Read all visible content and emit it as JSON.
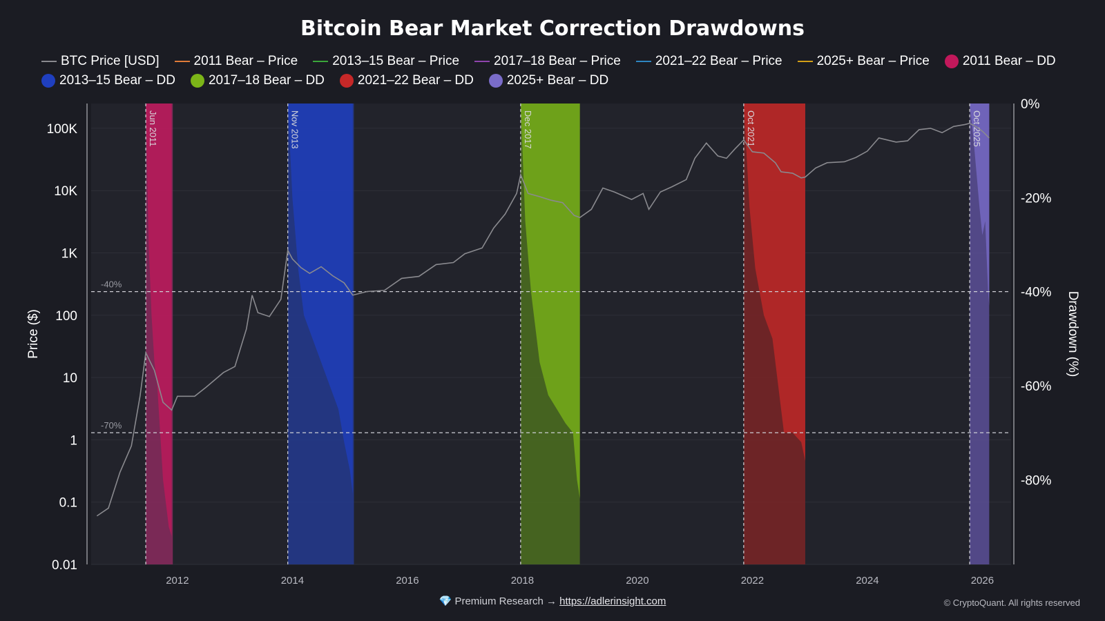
{
  "chart_data": {
    "type": "line",
    "title": "Bitcoin Bear Market Correction Drawdowns",
    "ylabel_left": "Price ($)",
    "ylabel_right": "Drawdown (%)",
    "y_left_scale": "log",
    "y_left_range": [
      0.01,
      250000
    ],
    "y_left_ticks": [
      "0.01",
      "0.1",
      "1",
      "10",
      "100",
      "1K",
      "10K",
      "100K"
    ],
    "y_right_range": [
      -98,
      0
    ],
    "y_right_ticks": [
      "0%",
      "-20%",
      "-40%",
      "-60%",
      "-80%"
    ],
    "x_range": [
      2010.5,
      2026.5
    ],
    "x_ticks": [
      "2012",
      "2014",
      "2016",
      "2018",
      "2020",
      "2022",
      "2024",
      "2026"
    ],
    "reference_lines": [
      {
        "label": "-40%",
        "value": -40
      },
      {
        "label": "-70%",
        "value": -70
      }
    ],
    "legend": [
      {
        "name": "BTC Price [USD]",
        "kind": "line",
        "color": "#8a8a8f"
      },
      {
        "name": "2011 Bear – Price",
        "kind": "line",
        "color": "#e07b39"
      },
      {
        "name": "2013–15 Bear – Price",
        "kind": "line",
        "color": "#3aa63a"
      },
      {
        "name": "2017–18 Bear – Price",
        "kind": "line",
        "color": "#8e44ad"
      },
      {
        "name": "2021–22 Bear – Price",
        "kind": "line",
        "color": "#2e86c1"
      },
      {
        "name": "2025+ Bear – Price",
        "kind": "line",
        "color": "#d4a017"
      },
      {
        "name": "2011 Bear – DD",
        "kind": "dot",
        "color": "#c2185b"
      },
      {
        "name": "2013–15 Bear – DD",
        "kind": "dot",
        "color": "#1f3fbf"
      },
      {
        "name": "2017–18 Bear – DD",
        "kind": "dot",
        "color": "#7cb518"
      },
      {
        "name": "2021–22 Bear – DD",
        "kind": "dot",
        "color": "#c62828"
      },
      {
        "name": "2025+ Bear – DD",
        "kind": "dot",
        "color": "#7a6cc9"
      }
    ],
    "bears": [
      {
        "label": "Jun 2011",
        "start": 2011.45,
        "end": 2011.92,
        "color": "#c2185b",
        "fill": "#8a2a5e",
        "dd": [
          [
            2011.45,
            0
          ],
          [
            2011.5,
            -30
          ],
          [
            2011.55,
            -45
          ],
          [
            2011.6,
            -55
          ],
          [
            2011.65,
            -60
          ],
          [
            2011.7,
            -70
          ],
          [
            2011.75,
            -80
          ],
          [
            2011.8,
            -85
          ],
          [
            2011.85,
            -90
          ],
          [
            2011.9,
            -92
          ]
        ]
      },
      {
        "label": "Nov 2013",
        "start": 2013.92,
        "end": 2015.07,
        "color": "#1f3fbf",
        "fill": "#23398f",
        "dd": [
          [
            2013.92,
            0
          ],
          [
            2014.0,
            -20
          ],
          [
            2014.1,
            -35
          ],
          [
            2014.2,
            -45
          ],
          [
            2014.35,
            -50
          ],
          [
            2014.5,
            -55
          ],
          [
            2014.65,
            -60
          ],
          [
            2014.8,
            -65
          ],
          [
            2014.9,
            -72
          ],
          [
            2015.0,
            -78
          ],
          [
            2015.05,
            -83
          ]
        ]
      },
      {
        "label": "Dec 2017",
        "start": 2017.97,
        "end": 2019.0,
        "color": "#7cb518",
        "fill": "#4b6e1f",
        "dd": [
          [
            2017.97,
            0
          ],
          [
            2018.05,
            -25
          ],
          [
            2018.15,
            -40
          ],
          [
            2018.3,
            -55
          ],
          [
            2018.45,
            -62
          ],
          [
            2018.6,
            -65
          ],
          [
            2018.75,
            -68
          ],
          [
            2018.88,
            -70
          ],
          [
            2018.95,
            -80
          ],
          [
            2019.0,
            -84
          ]
        ]
      },
      {
        "label": "Oct 2021",
        "start": 2021.85,
        "end": 2022.92,
        "color": "#c62828",
        "fill": "#7a2526",
        "dd": [
          [
            2021.85,
            0
          ],
          [
            2021.95,
            -22
          ],
          [
            2022.05,
            -35
          ],
          [
            2022.2,
            -45
          ],
          [
            2022.35,
            -50
          ],
          [
            2022.45,
            -60
          ],
          [
            2022.55,
            -70
          ],
          [
            2022.7,
            -70
          ],
          [
            2022.85,
            -72
          ],
          [
            2022.92,
            -76
          ]
        ]
      },
      {
        "label": "Oct 2025",
        "start": 2025.78,
        "end": 2026.12,
        "color": "#7a6cc9",
        "fill": "#5a4f98",
        "dd": [
          [
            2025.78,
            0
          ],
          [
            2025.85,
            -8
          ],
          [
            2025.9,
            -15
          ],
          [
            2025.95,
            -22
          ],
          [
            2026.0,
            -28
          ],
          [
            2026.05,
            -25
          ],
          [
            2026.1,
            -40
          ],
          [
            2026.12,
            -43
          ]
        ]
      }
    ],
    "btc_price": [
      [
        2010.6,
        0.06
      ],
      [
        2010.8,
        0.08
      ],
      [
        2011.0,
        0.3
      ],
      [
        2011.2,
        0.8
      ],
      [
        2011.35,
        5
      ],
      [
        2011.45,
        25
      ],
      [
        2011.6,
        13
      ],
      [
        2011.75,
        4
      ],
      [
        2011.9,
        3
      ],
      [
        2012.0,
        5
      ],
      [
        2012.3,
        5
      ],
      [
        2012.5,
        7
      ],
      [
        2012.8,
        12
      ],
      [
        2013.0,
        15
      ],
      [
        2013.2,
        60
      ],
      [
        2013.3,
        210
      ],
      [
        2013.4,
        110
      ],
      [
        2013.6,
        95
      ],
      [
        2013.8,
        180
      ],
      [
        2013.92,
        1100
      ],
      [
        2014.0,
        800
      ],
      [
        2014.15,
        580
      ],
      [
        2014.3,
        470
      ],
      [
        2014.5,
        600
      ],
      [
        2014.7,
        430
      ],
      [
        2014.9,
        330
      ],
      [
        2015.05,
        210
      ],
      [
        2015.3,
        240
      ],
      [
        2015.6,
        250
      ],
      [
        2015.9,
        390
      ],
      [
        2016.2,
        420
      ],
      [
        2016.5,
        650
      ],
      [
        2016.8,
        700
      ],
      [
        2017.0,
        970
      ],
      [
        2017.3,
        1200
      ],
      [
        2017.5,
        2500
      ],
      [
        2017.7,
        4200
      ],
      [
        2017.9,
        9000
      ],
      [
        2017.97,
        18000
      ],
      [
        2018.1,
        9000
      ],
      [
        2018.3,
        8000
      ],
      [
        2018.5,
        7000
      ],
      [
        2018.7,
        6400
      ],
      [
        2018.9,
        4000
      ],
      [
        2019.0,
        3700
      ],
      [
        2019.2,
        5000
      ],
      [
        2019.4,
        11000
      ],
      [
        2019.6,
        9500
      ],
      [
        2019.9,
        7200
      ],
      [
        2020.1,
        9000
      ],
      [
        2020.2,
        5000
      ],
      [
        2020.4,
        9500
      ],
      [
        2020.6,
        11500
      ],
      [
        2020.85,
        15000
      ],
      [
        2021.0,
        33000
      ],
      [
        2021.2,
        58000
      ],
      [
        2021.4,
        36000
      ],
      [
        2021.55,
        33000
      ],
      [
        2021.7,
        47000
      ],
      [
        2021.85,
        65000
      ],
      [
        2022.0,
        42000
      ],
      [
        2022.2,
        40000
      ],
      [
        2022.4,
        28000
      ],
      [
        2022.5,
        20000
      ],
      [
        2022.7,
        19000
      ],
      [
        2022.85,
        16000
      ],
      [
        2022.92,
        16500
      ],
      [
        2023.1,
        23000
      ],
      [
        2023.3,
        28000
      ],
      [
        2023.6,
        29000
      ],
      [
        2023.8,
        34000
      ],
      [
        2024.0,
        43000
      ],
      [
        2024.2,
        70000
      ],
      [
        2024.5,
        60000
      ],
      [
        2024.7,
        63000
      ],
      [
        2024.9,
        95000
      ],
      [
        2025.1,
        100000
      ],
      [
        2025.3,
        85000
      ],
      [
        2025.5,
        107000
      ],
      [
        2025.7,
        115000
      ],
      [
        2025.78,
        120000
      ],
      [
        2025.9,
        105000
      ],
      [
        2026.0,
        90000
      ],
      [
        2026.12,
        70000
      ]
    ]
  },
  "footer": {
    "gem_icon": "💎",
    "label": "Premium Research →",
    "link": "https://adlerinsight.com"
  },
  "copyright": "© CryptoQuant. All rights reserved"
}
